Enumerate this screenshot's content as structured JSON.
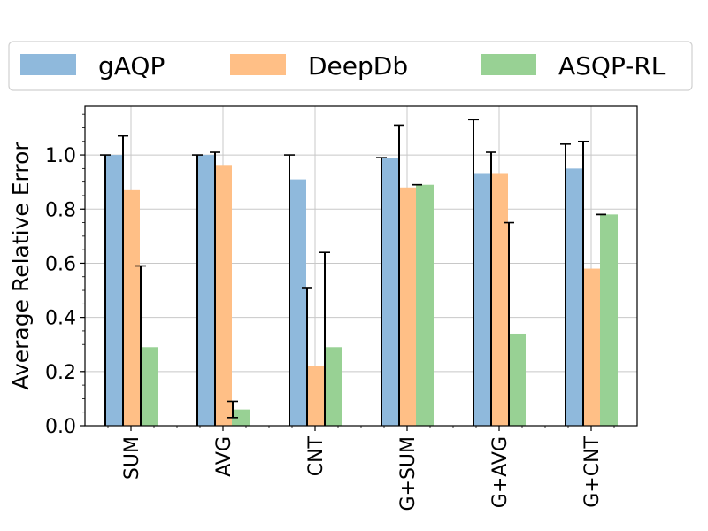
{
  "chart_data": {
    "type": "bar",
    "categories": [
      "SUM",
      "AVG",
      "CNT",
      "G+SUM",
      "G+AVG",
      "G+CNT"
    ],
    "series": [
      {
        "name": "gAQP",
        "color": "#8fb9dc",
        "values": [
          1.0,
          1.0,
          0.91,
          0.99,
          0.93,
          0.95
        ],
        "err_low": [
          0.0,
          0.0,
          0.0,
          0.0,
          0.0,
          0.0
        ],
        "err_high": [
          1.0,
          1.0,
          1.0,
          0.99,
          1.13,
          1.04
        ]
      },
      {
        "name": "DeepDb",
        "color": "#ffbf86",
        "values": [
          0.87,
          0.96,
          0.22,
          0.88,
          0.93,
          0.58
        ],
        "err_low": [
          0.0,
          0.0,
          0.0,
          0.0,
          0.0,
          0.0
        ],
        "err_high": [
          1.07,
          1.01,
          0.51,
          1.11,
          1.01,
          1.05
        ]
      },
      {
        "name": "ASQP-RL",
        "color": "#98d194",
        "values": [
          0.29,
          0.06,
          0.29,
          0.89,
          0.34,
          0.78
        ],
        "err_low": [
          0.0,
          0.03,
          0.0,
          0.89,
          0.0,
          0.78
        ],
        "err_high": [
          0.59,
          0.09,
          0.64,
          0.89,
          0.75,
          0.78
        ]
      }
    ],
    "title": "",
    "xlabel": "",
    "ylabel": "Average Relative Error",
    "ylim": [
      0,
      1.18
    ],
    "yticks": [
      "0.0",
      "0.2",
      "0.4",
      "0.6",
      "0.8",
      "1.0"
    ],
    "grid": true,
    "legend_position": "top"
  }
}
